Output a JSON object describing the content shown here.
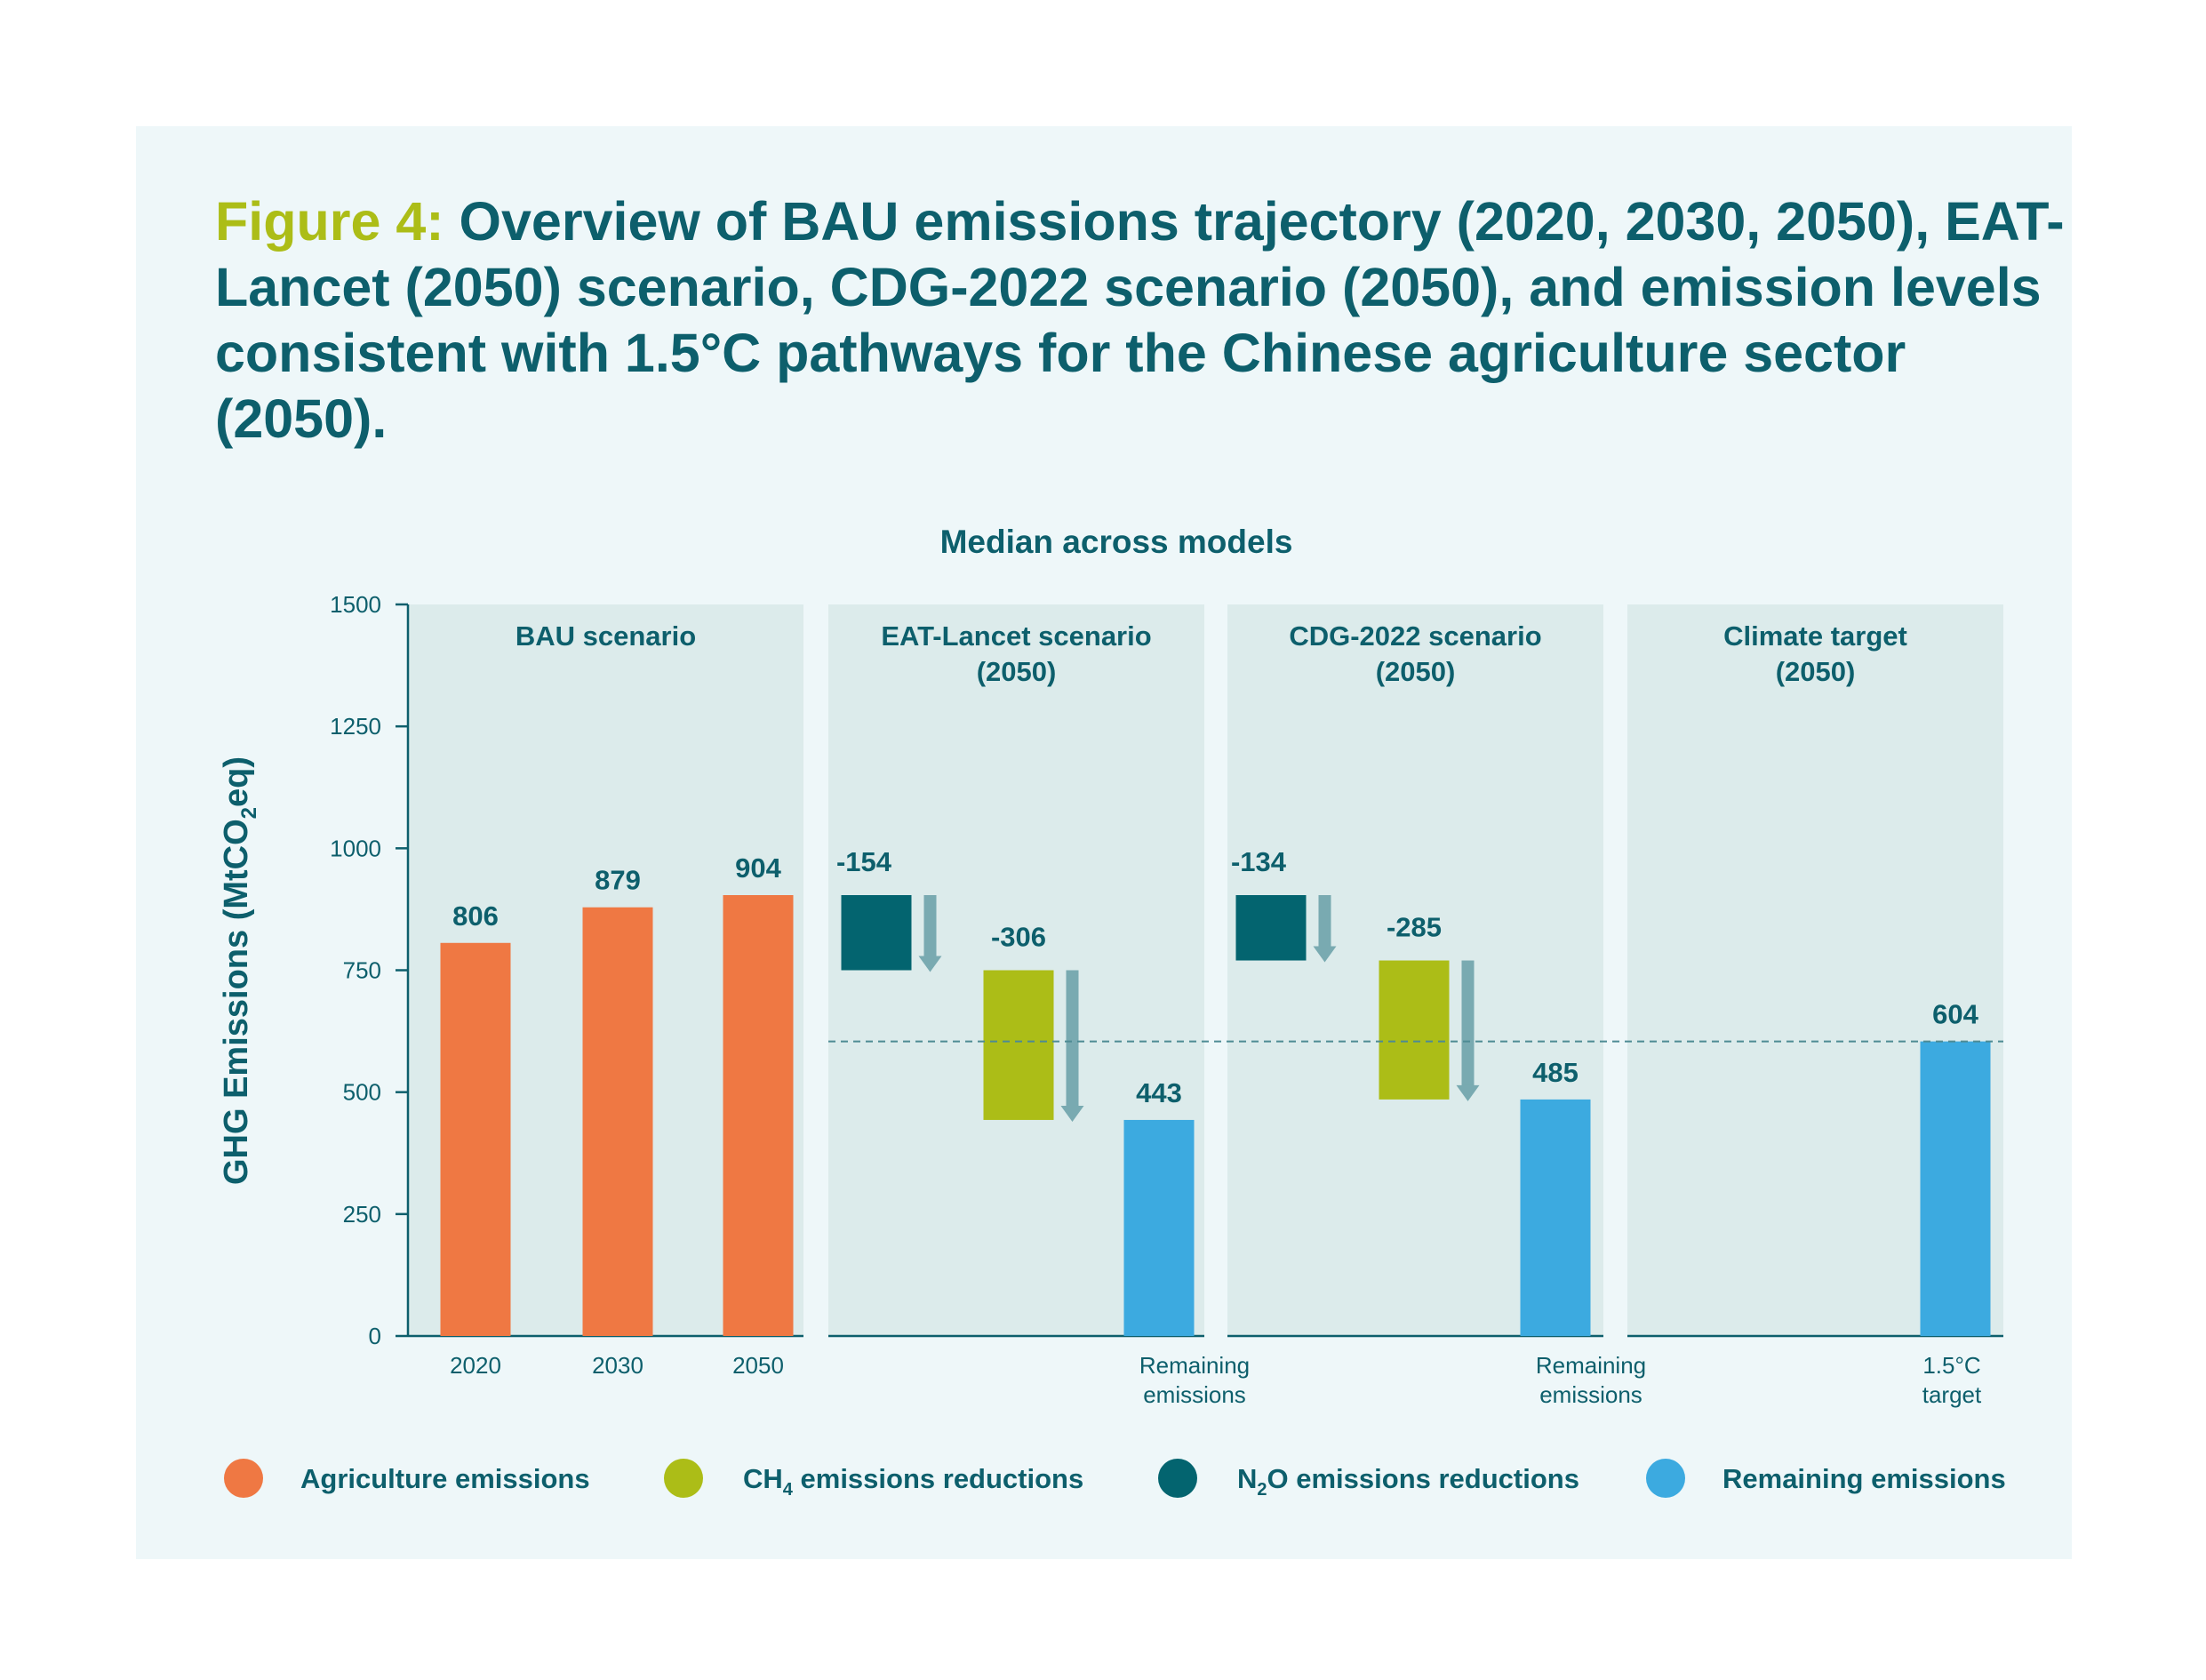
{
  "figure": {
    "label": "Figure 4:",
    "title": "Overview of BAU emissions trajectory (2020, 2030, 2050), EAT-Lancet (2050) scenario, CDG-2022 scenario (2050), and emission levels consistent with 1.5°C pathways for the Chinese agriculture sector (2050)."
  },
  "chart_data": {
    "type": "bar",
    "subtitle": "Median across models",
    "ylabel": {
      "main": "GHG Emissions (MtCO",
      "sub": "2",
      "end": "eq)"
    },
    "ylim": [
      0,
      1500
    ],
    "yticks": [
      0,
      250,
      500,
      750,
      1000,
      1250,
      1500
    ],
    "reference_line": {
      "value": 604,
      "style": "dashed"
    },
    "panels": [
      {
        "title_lines": [
          "BAU scenario"
        ],
        "bars": [
          {
            "category": "2020",
            "kind": "agriculture",
            "base": 0,
            "top": 806,
            "label": "806",
            "xlabel": [
              "2020"
            ]
          },
          {
            "category": "2030",
            "kind": "agriculture",
            "base": 0,
            "top": 879,
            "label": "879",
            "xlabel": [
              "2030"
            ]
          },
          {
            "category": "2050",
            "kind": "agriculture",
            "base": 0,
            "top": 904,
            "label": "904",
            "xlabel": [
              "2050"
            ]
          }
        ]
      },
      {
        "title_lines": [
          "EAT-Lancet scenario",
          "(2050)"
        ],
        "bars": [
          {
            "category": "N2O reduction",
            "kind": "n2o",
            "base": 750,
            "top": 904,
            "label": "-154",
            "xlabel": []
          },
          {
            "category": "CH4 reduction",
            "kind": "ch4",
            "base": 443,
            "top": 750,
            "label": "-306",
            "xlabel": []
          },
          {
            "category": "Remaining emissions",
            "kind": "remaining",
            "base": 0,
            "top": 443,
            "label": "443",
            "xlabel": [
              "Remaining",
              "emissions"
            ]
          }
        ]
      },
      {
        "title_lines": [
          "CDG-2022 scenario",
          "(2050)"
        ],
        "bars": [
          {
            "category": "N2O reduction",
            "kind": "n2o",
            "base": 770,
            "top": 904,
            "label": "-134",
            "xlabel": []
          },
          {
            "category": "CH4 reduction",
            "kind": "ch4",
            "base": 485,
            "top": 770,
            "label": "-285",
            "xlabel": []
          },
          {
            "category": "Remaining emissions",
            "kind": "remaining",
            "base": 0,
            "top": 485,
            "label": "485",
            "xlabel": [
              "Remaining",
              "emissions"
            ]
          }
        ]
      },
      {
        "title_lines": [
          "Climate target",
          "(2050)"
        ],
        "bars": [
          {
            "category": "1.5°C target",
            "kind": "remaining",
            "base": 0,
            "top": 604,
            "label": "604",
            "xlabel": [
              "1.5°C",
              "target"
            ]
          }
        ]
      }
    ],
    "legend": [
      {
        "kind": "agriculture",
        "parts": [
          "Agriculture emissions"
        ]
      },
      {
        "kind": "ch4",
        "parts": [
          "CH",
          "4",
          " emissions reductions"
        ]
      },
      {
        "kind": "n2o",
        "parts": [
          "N",
          "2",
          "O emissions reductions"
        ]
      },
      {
        "kind": "remaining",
        "parts": [
          "Remaining emissions"
        ]
      }
    ],
    "legend_placement": "bottom",
    "colors": {
      "agriculture": "#ef7843",
      "ch4": "#acbd17",
      "n2o": "#03646f",
      "remaining": "#3caae0",
      "arrow": "#79aab1",
      "panel_bg": "#dcebeb",
      "text": "#0d5f6c"
    }
  }
}
